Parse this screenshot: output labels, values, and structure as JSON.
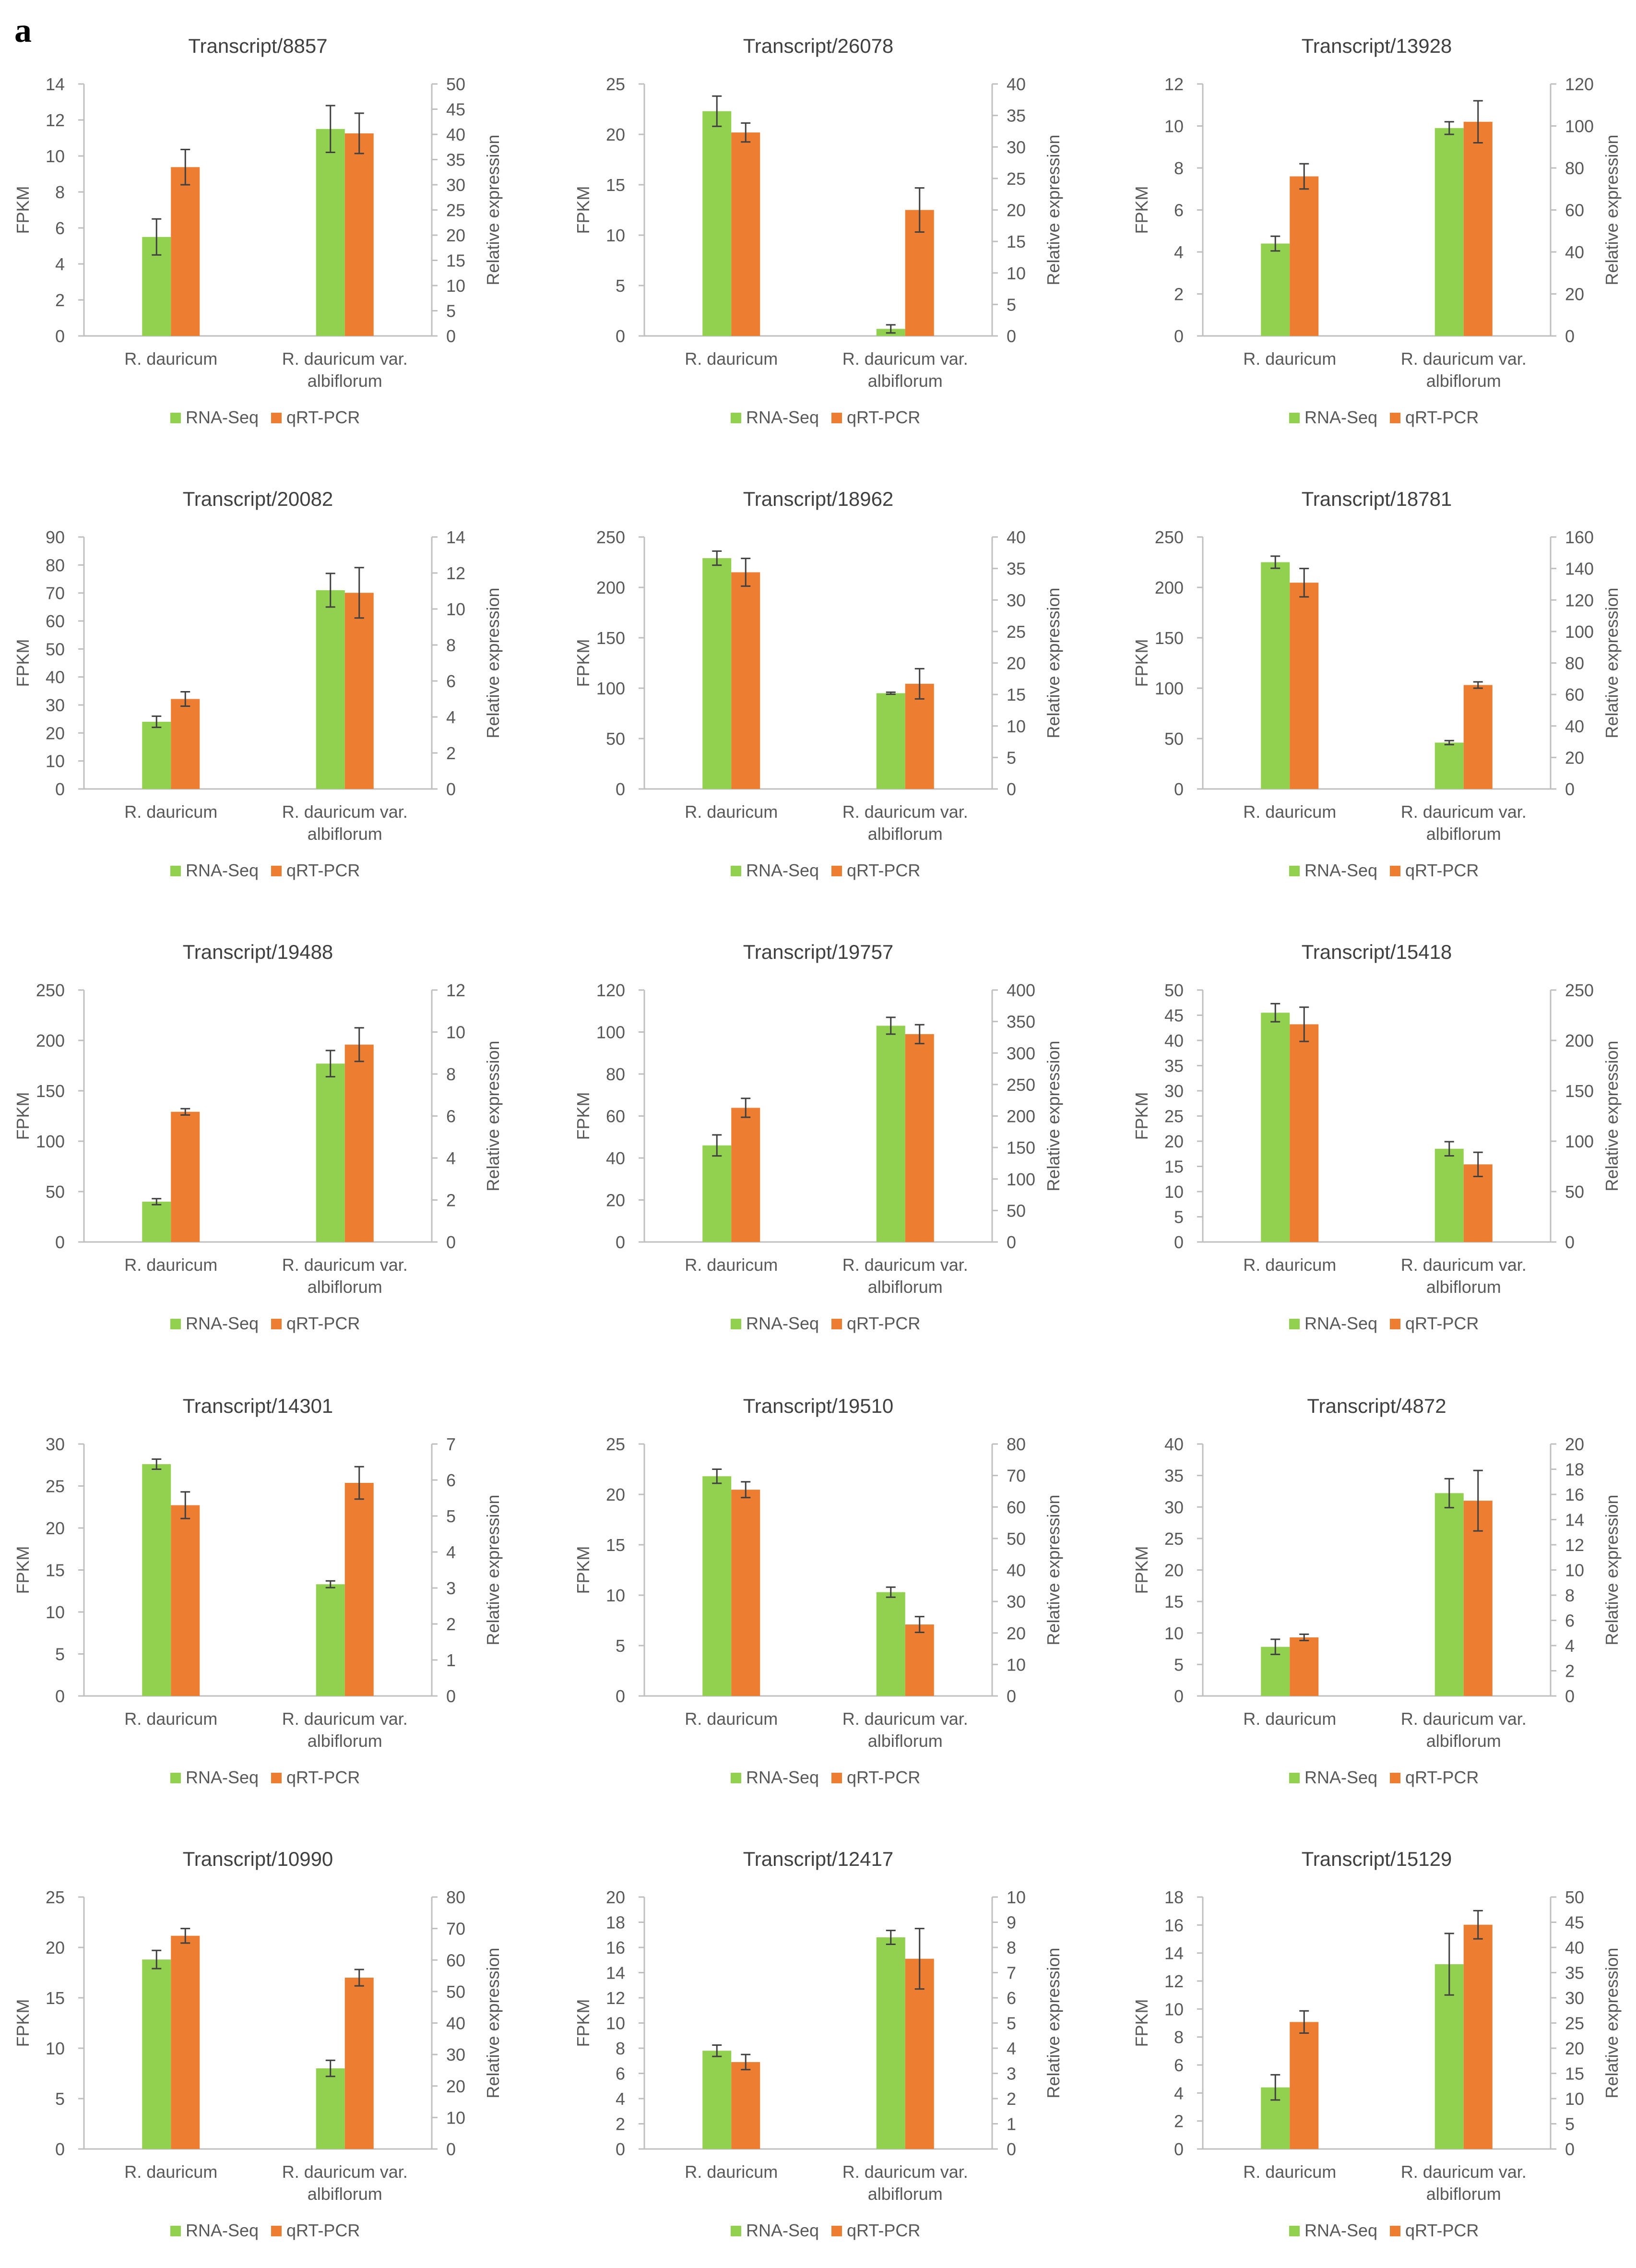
{
  "figure": {
    "panel_label": "a",
    "legend": {
      "series1": "RNA-Seq",
      "series2": "qRT-PCR"
    },
    "colors": {
      "rna_seq": "#92d050",
      "qrt_pcr": "#ed7d31",
      "axis": "#bfbfbf",
      "text": "#595959",
      "title": "#404040"
    }
  },
  "chart_data": [
    {
      "type": "bar",
      "title": "Transcript/8857",
      "categories": [
        "R. dauricum",
        "R. dauricum var. albiflorum"
      ],
      "ylabel": "FPKM",
      "y2label": "Relative expression",
      "ylim": [
        0,
        14
      ],
      "ystep": 2,
      "y2lim": [
        0,
        50
      ],
      "y2step": 5,
      "series": [
        {
          "name": "RNA-Seq",
          "axis": "left",
          "values": [
            5.5,
            11.5
          ],
          "errors": [
            1.0,
            1.3
          ]
        },
        {
          "name": "qRT-PCR",
          "axis": "right",
          "values": [
            33.5,
            40.2
          ],
          "errors": [
            3.5,
            4.0
          ]
        }
      ]
    },
    {
      "type": "bar",
      "title": "Transcript/26078",
      "categories": [
        "R. dauricum",
        "R. dauricum var. albiflorum"
      ],
      "ylabel": "FPKM",
      "y2label": "Relative expression",
      "ylim": [
        0,
        25
      ],
      "ystep": 5,
      "y2lim": [
        0,
        40
      ],
      "y2step": 5,
      "series": [
        {
          "name": "RNA-Seq",
          "axis": "left",
          "values": [
            22.3,
            0.7
          ],
          "errors": [
            1.5,
            0.4
          ]
        },
        {
          "name": "qRT-PCR",
          "axis": "right",
          "values": [
            32.3,
            20.0
          ],
          "errors": [
            1.5,
            3.5
          ]
        }
      ]
    },
    {
      "type": "bar",
      "title": "Transcript/13928",
      "categories": [
        "R. dauricum",
        "R. dauricum var. albiflorum"
      ],
      "ylabel": "FPKM",
      "y2label": "Relative expression",
      "ylim": [
        0,
        12
      ],
      "ystep": 2,
      "y2lim": [
        0,
        120
      ],
      "y2step": 20,
      "series": [
        {
          "name": "RNA-Seq",
          "axis": "left",
          "values": [
            4.4,
            9.9
          ],
          "errors": [
            0.35,
            0.3
          ]
        },
        {
          "name": "qRT-PCR",
          "axis": "right",
          "values": [
            76,
            102
          ],
          "errors": [
            6,
            10
          ]
        }
      ]
    },
    {
      "type": "bar",
      "title": "Transcript/20082",
      "categories": [
        "R. dauricum",
        "R. dauricum var. albiflorum"
      ],
      "ylabel": "FPKM",
      "y2label": "Relative expression",
      "ylim": [
        0,
        90
      ],
      "ystep": 10,
      "y2lim": [
        0,
        14
      ],
      "y2step": 2,
      "series": [
        {
          "name": "RNA-Seq",
          "axis": "left",
          "values": [
            24,
            71
          ],
          "errors": [
            2,
            6
          ]
        },
        {
          "name": "qRT-PCR",
          "axis": "right",
          "values": [
            5.0,
            10.9
          ],
          "errors": [
            0.4,
            1.4
          ]
        }
      ]
    },
    {
      "type": "bar",
      "title": "Transcript/18962",
      "categories": [
        "R. dauricum",
        "R. dauricum var. albiflorum"
      ],
      "ylabel": "FPKM",
      "y2label": "Relative expression",
      "ylim": [
        0,
        250
      ],
      "ystep": 50,
      "y2lim": [
        0,
        40
      ],
      "y2step": 5,
      "series": [
        {
          "name": "RNA-Seq",
          "axis": "left",
          "values": [
            229,
            95
          ],
          "errors": [
            7,
            1
          ]
        },
        {
          "name": "qRT-PCR",
          "axis": "right",
          "values": [
            34.4,
            16.7
          ],
          "errors": [
            2.2,
            2.4
          ]
        }
      ]
    },
    {
      "type": "bar",
      "title": "Transcript/18781",
      "categories": [
        "R. dauricum",
        "R. dauricum var. albiflorum"
      ],
      "ylabel": "FPKM",
      "y2label": "Relative expression",
      "ylim": [
        0,
        250
      ],
      "ystep": 50,
      "y2lim": [
        0,
        160
      ],
      "y2step": 20,
      "series": [
        {
          "name": "RNA-Seq",
          "axis": "left",
          "values": [
            225,
            46
          ],
          "errors": [
            6,
            2
          ]
        },
        {
          "name": "qRT-PCR",
          "axis": "right",
          "values": [
            131,
            66
          ],
          "errors": [
            9,
            2
          ]
        }
      ]
    },
    {
      "type": "bar",
      "title": "Transcript/19488",
      "categories": [
        "R. dauricum",
        "R. dauricum var. albiflorum"
      ],
      "ylabel": "FPKM",
      "y2label": "Relative expression",
      "ylim": [
        0,
        250
      ],
      "ystep": 50,
      "y2lim": [
        0,
        12
      ],
      "y2step": 2,
      "series": [
        {
          "name": "RNA-Seq",
          "axis": "left",
          "values": [
            40,
            177
          ],
          "errors": [
            3,
            13
          ]
        },
        {
          "name": "qRT-PCR",
          "axis": "right",
          "values": [
            6.2,
            9.4
          ],
          "errors": [
            0.15,
            0.8
          ]
        }
      ]
    },
    {
      "type": "bar",
      "title": "Transcript/19757",
      "categories": [
        "R. dauricum",
        "R. dauricum var. albiflorum"
      ],
      "ylabel": "FPKM",
      "y2label": "Relative expression",
      "ylim": [
        0,
        120
      ],
      "ystep": 20,
      "y2lim": [
        0,
        400
      ],
      "y2step": 50,
      "series": [
        {
          "name": "RNA-Seq",
          "axis": "left",
          "values": [
            46,
            103
          ],
          "errors": [
            5,
            4
          ]
        },
        {
          "name": "qRT-PCR",
          "axis": "right",
          "values": [
            213,
            330
          ],
          "errors": [
            15,
            15
          ]
        }
      ]
    },
    {
      "type": "bar",
      "title": "Transcript/15418",
      "categories": [
        "R. dauricum",
        "R. dauricum var. albiflorum"
      ],
      "ylabel": "FPKM",
      "y2label": "Relative expression",
      "ylim": [
        0,
        50
      ],
      "ystep": 5,
      "y2lim": [
        0,
        250
      ],
      "y2step": 50,
      "series": [
        {
          "name": "RNA-Seq",
          "axis": "left",
          "values": [
            45.5,
            18.5
          ],
          "errors": [
            1.8,
            1.4
          ]
        },
        {
          "name": "qRT-PCR",
          "axis": "right",
          "values": [
            216,
            77
          ],
          "errors": [
            17,
            12
          ]
        }
      ]
    },
    {
      "type": "bar",
      "title": "Transcript/14301",
      "categories": [
        "R. dauricum",
        "R. dauricum var. albiflorum"
      ],
      "ylabel": "FPKM",
      "y2label": "Relative expression",
      "ylim": [
        0,
        30
      ],
      "ystep": 5,
      "y2lim": [
        0,
        7
      ],
      "y2step": 1,
      "series": [
        {
          "name": "RNA-Seq",
          "axis": "left",
          "values": [
            27.6,
            13.3
          ],
          "errors": [
            0.6,
            0.4
          ]
        },
        {
          "name": "qRT-PCR",
          "axis": "right",
          "values": [
            5.3,
            5.92
          ],
          "errors": [
            0.37,
            0.45
          ]
        }
      ]
    },
    {
      "type": "bar",
      "title": "Transcript/19510",
      "categories": [
        "R. dauricum",
        "R. dauricum var. albiflorum"
      ],
      "ylabel": "FPKM",
      "y2label": "Relative expression",
      "ylim": [
        0,
        25
      ],
      "ystep": 5,
      "y2lim": [
        0,
        80
      ],
      "y2step": 10,
      "series": [
        {
          "name": "RNA-Seq",
          "axis": "left",
          "values": [
            21.8,
            10.3
          ],
          "errors": [
            0.7,
            0.5
          ]
        },
        {
          "name": "qRT-PCR",
          "axis": "right",
          "values": [
            65.5,
            22.7
          ],
          "errors": [
            2.5,
            2.5
          ]
        }
      ]
    },
    {
      "type": "bar",
      "title": "Transcript/4872",
      "categories": [
        "R. dauricum",
        "R. dauricum var. albiflorum"
      ],
      "ylabel": "FPKM",
      "y2label": "Relative expression",
      "ylim": [
        0,
        40
      ],
      "ystep": 5,
      "y2lim": [
        0,
        20
      ],
      "y2step": 2,
      "series": [
        {
          "name": "RNA-Seq",
          "axis": "left",
          "values": [
            7.8,
            32.2
          ],
          "errors": [
            1.2,
            2.3
          ]
        },
        {
          "name": "qRT-PCR",
          "axis": "right",
          "values": [
            4.65,
            15.5
          ],
          "errors": [
            0.25,
            2.4
          ]
        }
      ]
    },
    {
      "type": "bar",
      "title": "Transcript/10990",
      "categories": [
        "R. dauricum",
        "R. dauricum var. albiflorum"
      ],
      "ylabel": "FPKM",
      "y2label": "Relative expression",
      "ylim": [
        0,
        25
      ],
      "ystep": 5,
      "y2lim": [
        0,
        80
      ],
      "y2step": 10,
      "series": [
        {
          "name": "RNA-Seq",
          "axis": "left",
          "values": [
            18.8,
            8.0
          ],
          "errors": [
            0.9,
            0.8
          ]
        },
        {
          "name": "qRT-PCR",
          "axis": "right",
          "values": [
            67.7,
            54.4
          ],
          "errors": [
            2.3,
            2.6
          ]
        }
      ]
    },
    {
      "type": "bar",
      "title": "Transcript/12417",
      "categories": [
        "R. dauricum",
        "R. dauricum var. albiflorum"
      ],
      "ylabel": "FPKM",
      "y2label": "Relative expression",
      "ylim": [
        0,
        20
      ],
      "ystep": 2,
      "y2lim": [
        0,
        10
      ],
      "y2step": 1,
      "series": [
        {
          "name": "RNA-Seq",
          "axis": "left",
          "values": [
            7.8,
            16.8
          ],
          "errors": [
            0.45,
            0.55
          ]
        },
        {
          "name": "qRT-PCR",
          "axis": "right",
          "values": [
            3.45,
            7.55
          ],
          "errors": [
            0.3,
            1.2
          ]
        }
      ]
    },
    {
      "type": "bar",
      "title": "Transcript/15129",
      "categories": [
        "R. dauricum",
        "R. dauricum var. albiflorum"
      ],
      "ylabel": "FPKM",
      "y2label": "Relative expression",
      "ylim": [
        0,
        18
      ],
      "ystep": 2,
      "y2lim": [
        0,
        50
      ],
      "y2step": 5,
      "series": [
        {
          "name": "RNA-Seq",
          "axis": "left",
          "values": [
            4.4,
            13.2
          ],
          "errors": [
            0.9,
            2.2
          ]
        },
        {
          "name": "qRT-PCR",
          "axis": "right",
          "values": [
            25.2,
            44.5
          ],
          "errors": [
            2.2,
            2.8
          ]
        }
      ]
    }
  ]
}
